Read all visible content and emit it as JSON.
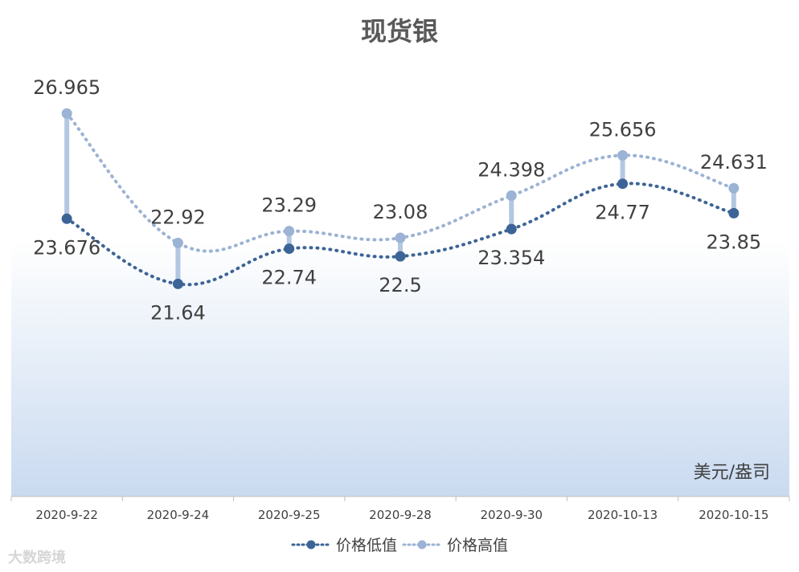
{
  "chart_data": {
    "type": "line",
    "title": "现货银",
    "unit_note": "美元/盎司",
    "categories": [
      "2020-9-22",
      "2020-9-24",
      "2020-9-25",
      "2020-9-28",
      "2020-9-30",
      "2020-10-13",
      "2020-10-15"
    ],
    "series": [
      {
        "name": "价格低值",
        "values": [
          23.676,
          21.64,
          22.74,
          22.5,
          23.354,
          24.77,
          23.85
        ],
        "color": "#3d6496"
      },
      {
        "name": "价格高值",
        "values": [
          26.965,
          22.92,
          23.29,
          23.08,
          24.398,
          25.656,
          24.631
        ],
        "color": "#9bb3d4"
      }
    ],
    "ylim": [
      15,
      28
    ],
    "grid": false,
    "legend": "bottom",
    "value_labels": {
      "low": [
        "23.676",
        "21.64",
        "22.74",
        "22.5",
        "23.354",
        "24.77",
        "23.85"
      ],
      "high": [
        "26.965",
        "22.92",
        "23.29",
        "23.08",
        "24.398",
        "25.656",
        "24.631"
      ]
    }
  },
  "watermark": "大数跨境"
}
